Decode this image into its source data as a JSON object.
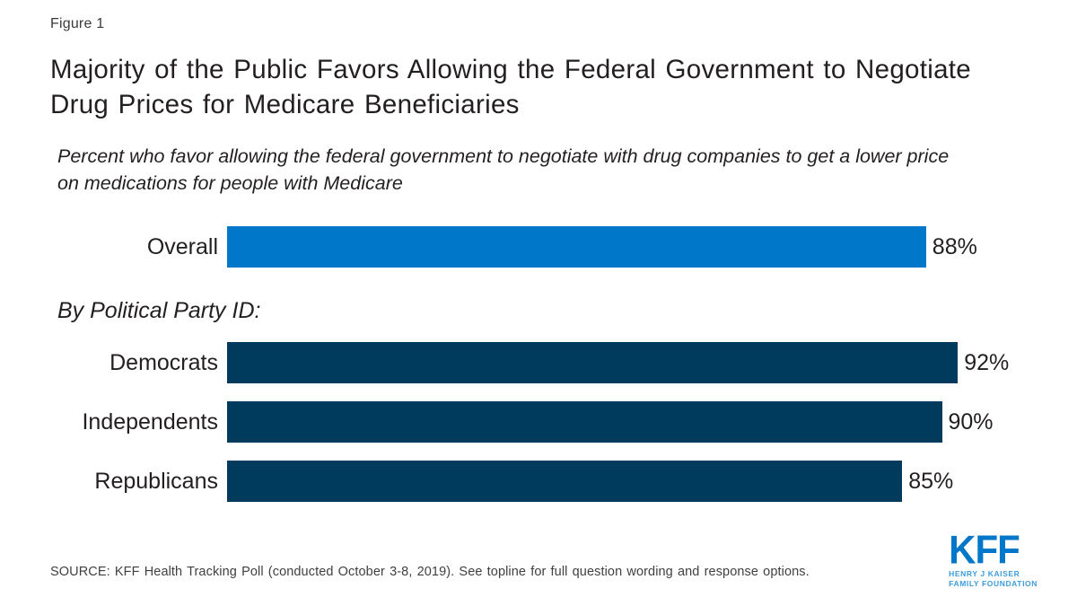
{
  "figure_label": "Figure 1",
  "title": "Majority of the Public Favors Allowing the Federal Government to Negotiate Drug Prices for Medicare Beneficiaries",
  "subtitle": "Percent who favor allowing the federal government to negotiate with drug companies to get a lower price on medications for people with Medicare",
  "group_heading": "By Political Party ID:",
  "source": "SOURCE: KFF Health Tracking Poll (conducted October 3-8, 2019). See topline for full question wording and response options.",
  "logo": {
    "text": "KFF",
    "tagline_line1": "HENRY J KAISER",
    "tagline_line2": "FAMILY FOUNDATION"
  },
  "colors": {
    "overall_bar": "#0077C8",
    "party_bar": "#003A5C",
    "logo_blue": "#0077C8",
    "logo_light_blue": "#3E9CD9",
    "text_dark": "#231F20",
    "source_text": "#404040"
  },
  "chart_data": {
    "type": "bar",
    "orientation": "horizontal",
    "title": "Majority of the Public Favors Allowing the Federal Government to Negotiate Drug Prices for Medicare Beneficiaries",
    "subtitle": "Percent who favor allowing the federal government to negotiate with drug companies to get a lower price on medications for people with Medicare",
    "group_heading": "By Political Party ID:",
    "categories": [
      "Overall",
      "Democrats",
      "Independents",
      "Republicans"
    ],
    "values": [
      88,
      92,
      90,
      85
    ],
    "value_labels": [
      "88%",
      "92%",
      "90%",
      "85%"
    ],
    "bar_colors": [
      "#0077C8",
      "#003A5C",
      "#003A5C",
      "#003A5C"
    ],
    "xlim": [
      0,
      100
    ],
    "grid": false,
    "legend": false,
    "data_labels_position": "outside-end"
  }
}
